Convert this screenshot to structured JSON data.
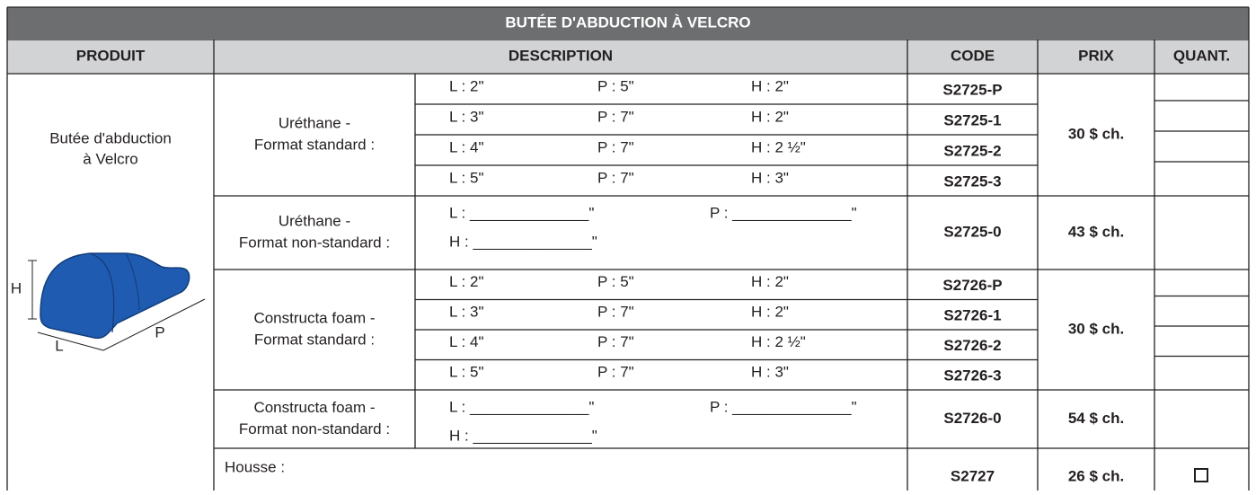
{
  "title": "BUTÉE D'ABDUCTION À VELCRO",
  "headers": [
    "PRODUIT",
    "DESCRIPTION",
    "CODE",
    "PRIX",
    "QUANT."
  ],
  "product": {
    "name_lines": [
      "Butée d'abduction",
      "à Velcro"
    ],
    "dimension_labels": {
      "h": "H",
      "l": "L",
      "p": "P"
    }
  },
  "groups": [
    {
      "label_lines": [
        "Uréthane -",
        "Format standard :"
      ],
      "price": "30 $ ch.",
      "rows": [
        {
          "l": "L : 2\"",
          "p": "P : 5\"",
          "h": "H : 2\"",
          "code": "S2725-P"
        },
        {
          "l": "L : 3\"",
          "p": "P : 7\"",
          "h": "H : 2\"",
          "code": "S2725-1"
        },
        {
          "l": "L : 4\"",
          "p": "P : 7\"",
          "h": "H : 2 ½\"",
          "code": "S2725-2"
        },
        {
          "l": "L : 5\"",
          "p": "P : 7\"",
          "h": "H : 3\"",
          "code": "S2725-3"
        }
      ]
    },
    {
      "label_lines": [
        "Uréthane -",
        "Format non-standard :"
      ],
      "price": "43 $ ch.",
      "code": "S2725-0",
      "custom": {
        "l": "L : ______________\"",
        "p": "P : ______________\"",
        "h": "H : ______________\""
      }
    },
    {
      "label_lines": [
        "Constructa foam -",
        "Format standard :"
      ],
      "price": "30 $ ch.",
      "rows": [
        {
          "l": "L : 2\"",
          "p": "P : 5\"",
          "h": "H : 2\"",
          "code": "S2726-P"
        },
        {
          "l": "L : 3\"",
          "p": "P : 7\"",
          "h": "H : 2\"",
          "code": "S2726-1"
        },
        {
          "l": "L : 4\"",
          "p": "P : 7\"",
          "h": "H : 2 ½\"",
          "code": "S2726-2"
        },
        {
          "l": "L : 5\"",
          "p": "P : 7\"",
          "h": "H : 3\"",
          "code": "S2726-3"
        }
      ]
    },
    {
      "label_lines": [
        "Constructa foam -",
        "Format non-standard :"
      ],
      "price": "54 $ ch.",
      "code": "S2726-0",
      "custom": {
        "l": "L : ______________\"",
        "p": "P : ______________\"",
        "h": "H : ______________\""
      }
    }
  ],
  "cover": {
    "label": "Housse :",
    "code": "S2727",
    "price": "26 $ ch."
  }
}
